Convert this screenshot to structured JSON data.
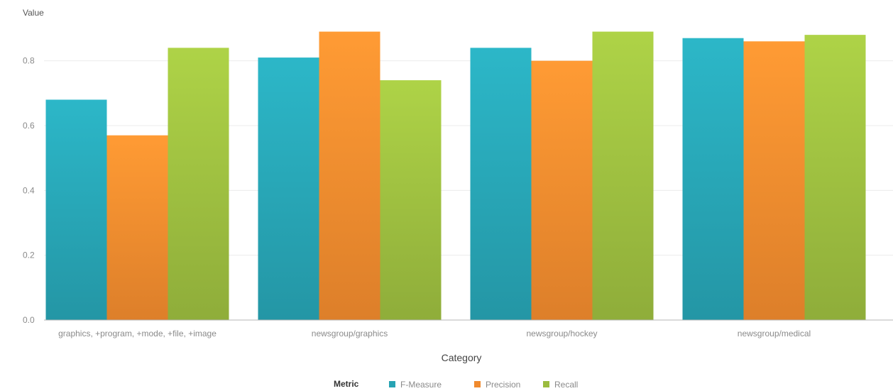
{
  "chart_data": {
    "type": "bar",
    "ylabel": "Value",
    "xlabel": "Category",
    "ylim": [
      0,
      0.9
    ],
    "yticks": [
      "0.0",
      "0.2",
      "0.4",
      "0.6",
      "0.8"
    ],
    "grid": true,
    "legend_position": "bottom",
    "legend_title": "Metric",
    "categories": [
      "graphics, +program, +mode, +file, +image",
      "newsgroup/graphics",
      "newsgroup/hockey",
      "newsgroup/medical"
    ],
    "series": [
      {
        "name": "F-Measure",
        "color": "#27a3b3",
        "values": [
          0.68,
          0.81,
          0.84,
          0.87
        ]
      },
      {
        "name": "Precision",
        "color": "#f08a2e",
        "values": [
          0.57,
          0.89,
          0.8,
          0.86
        ]
      },
      {
        "name": "Recall",
        "color": "#9bbc3f",
        "values": [
          0.84,
          0.74,
          0.89,
          0.88
        ]
      }
    ]
  }
}
